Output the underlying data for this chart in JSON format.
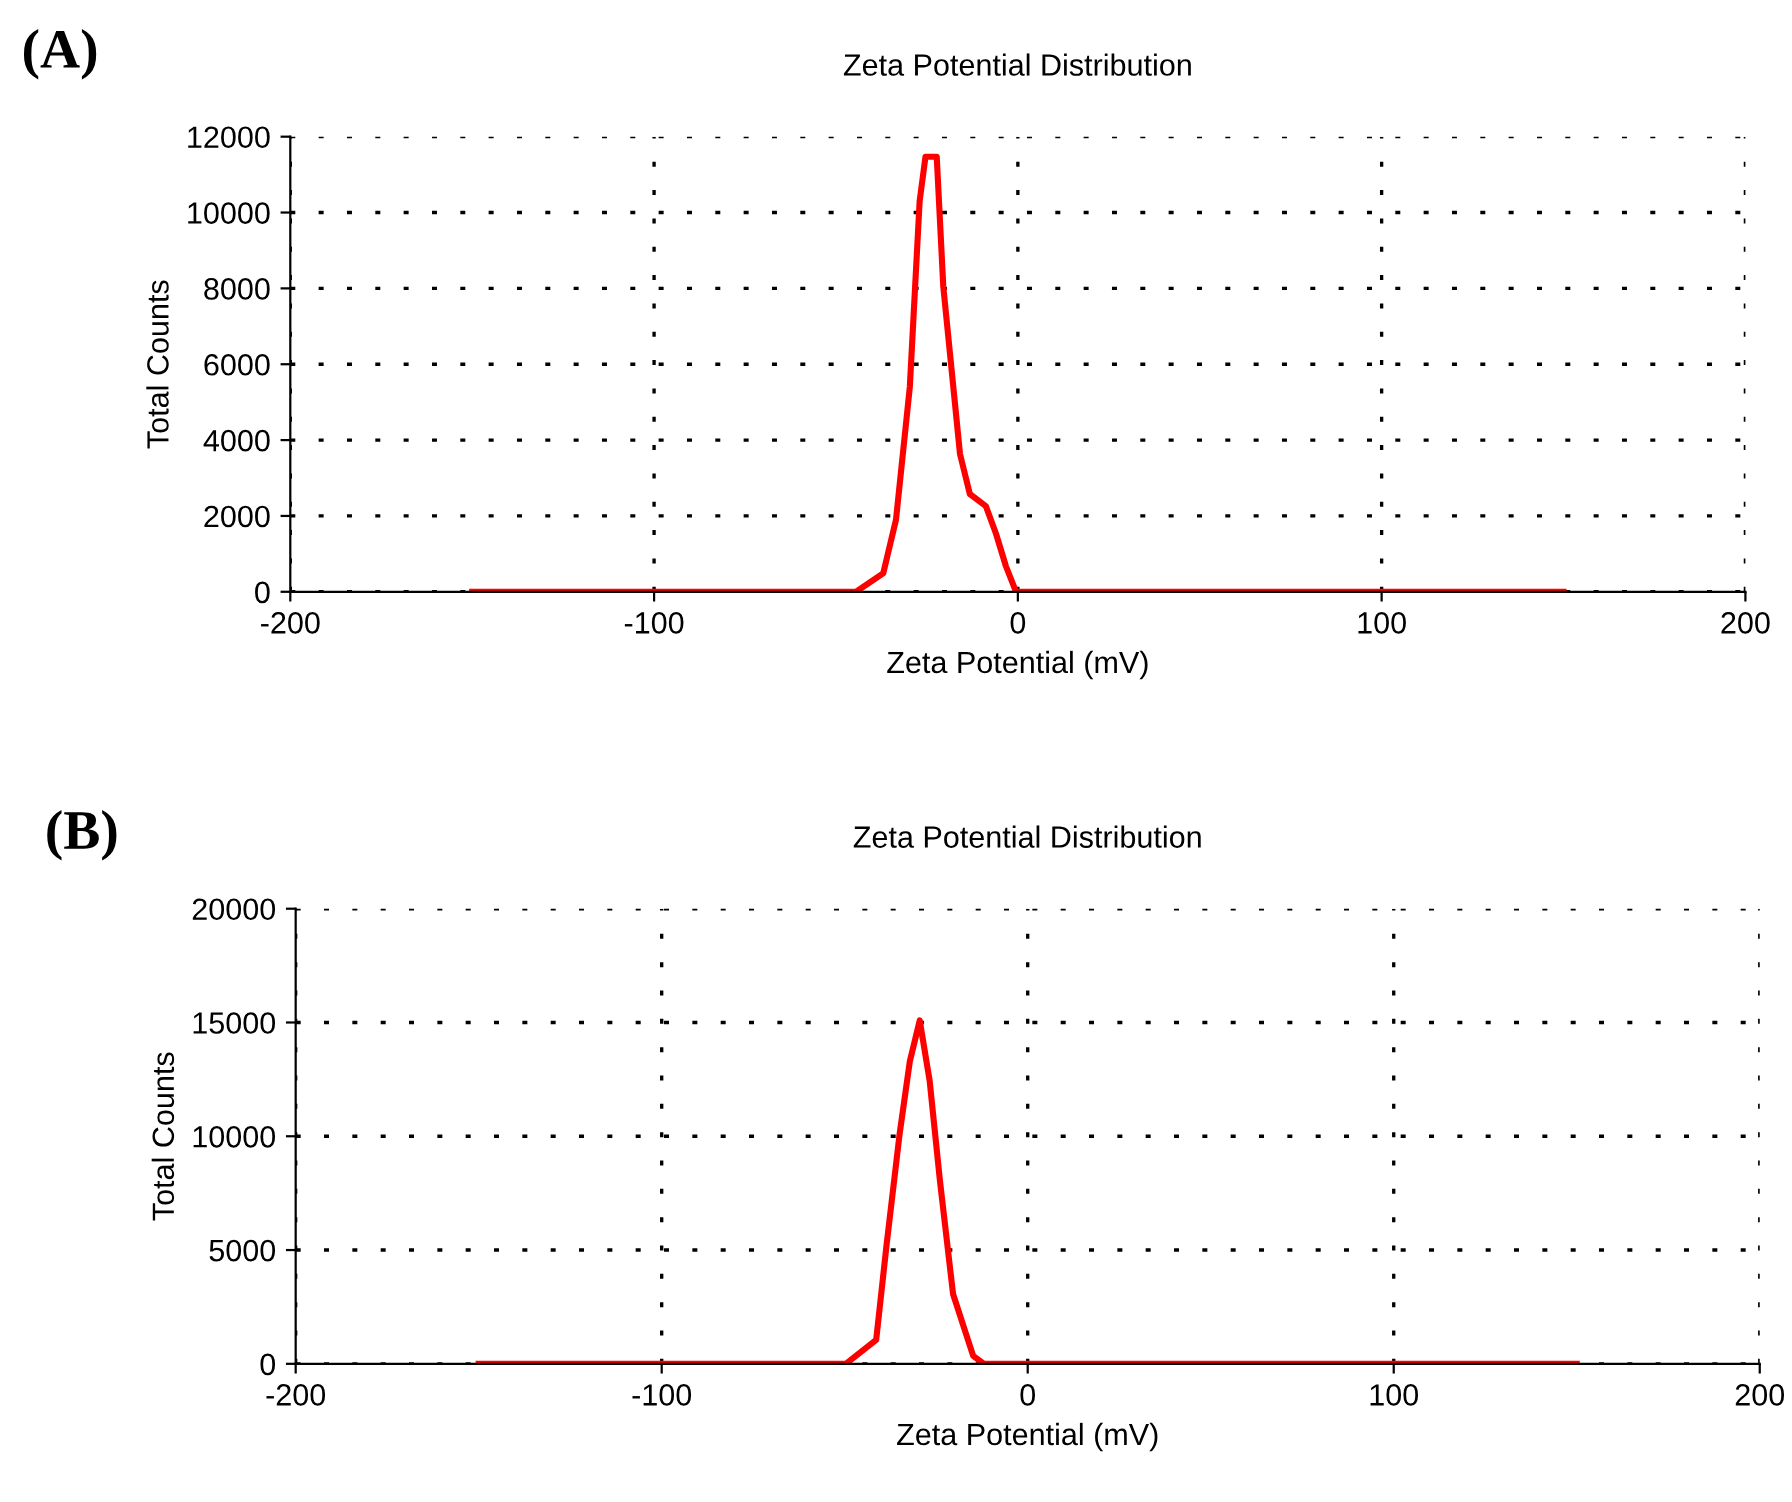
{
  "chart_data": [
    {
      "type": "line",
      "title": "Zeta Potential Distribution",
      "xlabel": "Zeta Potential (mV)",
      "ylabel": "Total Counts",
      "annotations": [
        "(A)"
      ],
      "x": [
        -150,
        -44.5,
        -37,
        -33.5,
        -29.7,
        -27,
        -25.4,
        -22.3,
        -20.5,
        -15.9,
        -13.2,
        -8.8,
        -6,
        -3.3,
        -0.5,
        150
      ],
      "series": [
        {
          "color": "#ff0000",
          "values": [
            0,
            0,
            490,
            1900,
            5400,
            10300,
            11470,
            11470,
            8050,
            3630,
            2580,
            2260,
            1530,
            680,
            0,
            0
          ]
        }
      ],
      "xlim": [
        -200,
        200
      ],
      "xticks": [
        -200,
        -100,
        0,
        100,
        200
      ],
      "ylim": [
        0,
        12000
      ],
      "yticks": [
        0,
        2000,
        4000,
        6000,
        8000,
        10000,
        12000
      ],
      "grid": true,
      "line_style": "solid",
      "marker": "none"
    },
    {
      "type": "line",
      "title": "Zeta Potential Distribution",
      "xlabel": "Zeta Potential (mV)",
      "ylabel": "Total Counts",
      "annotations": [
        "(B)"
      ],
      "x": [
        -150,
        -49.7,
        -41.4,
        -38.6,
        -35,
        -32.2,
        -29.5,
        -26.8,
        -24,
        -20.4,
        -14.9,
        -12,
        150
      ],
      "series": [
        {
          "color": "#ff0000",
          "values": [
            0,
            0,
            1050,
            5170,
            10100,
            13300,
            15090,
            12450,
            8070,
            3070,
            350,
            0,
            0
          ]
        }
      ],
      "xlim": [
        -200,
        200
      ],
      "xticks": [
        -200,
        -100,
        0,
        100,
        200
      ],
      "ylim": [
        0,
        20000
      ],
      "yticks": [
        0,
        5000,
        10000,
        15000,
        20000
      ],
      "grid": true,
      "line_style": "solid",
      "marker": "none"
    }
  ]
}
